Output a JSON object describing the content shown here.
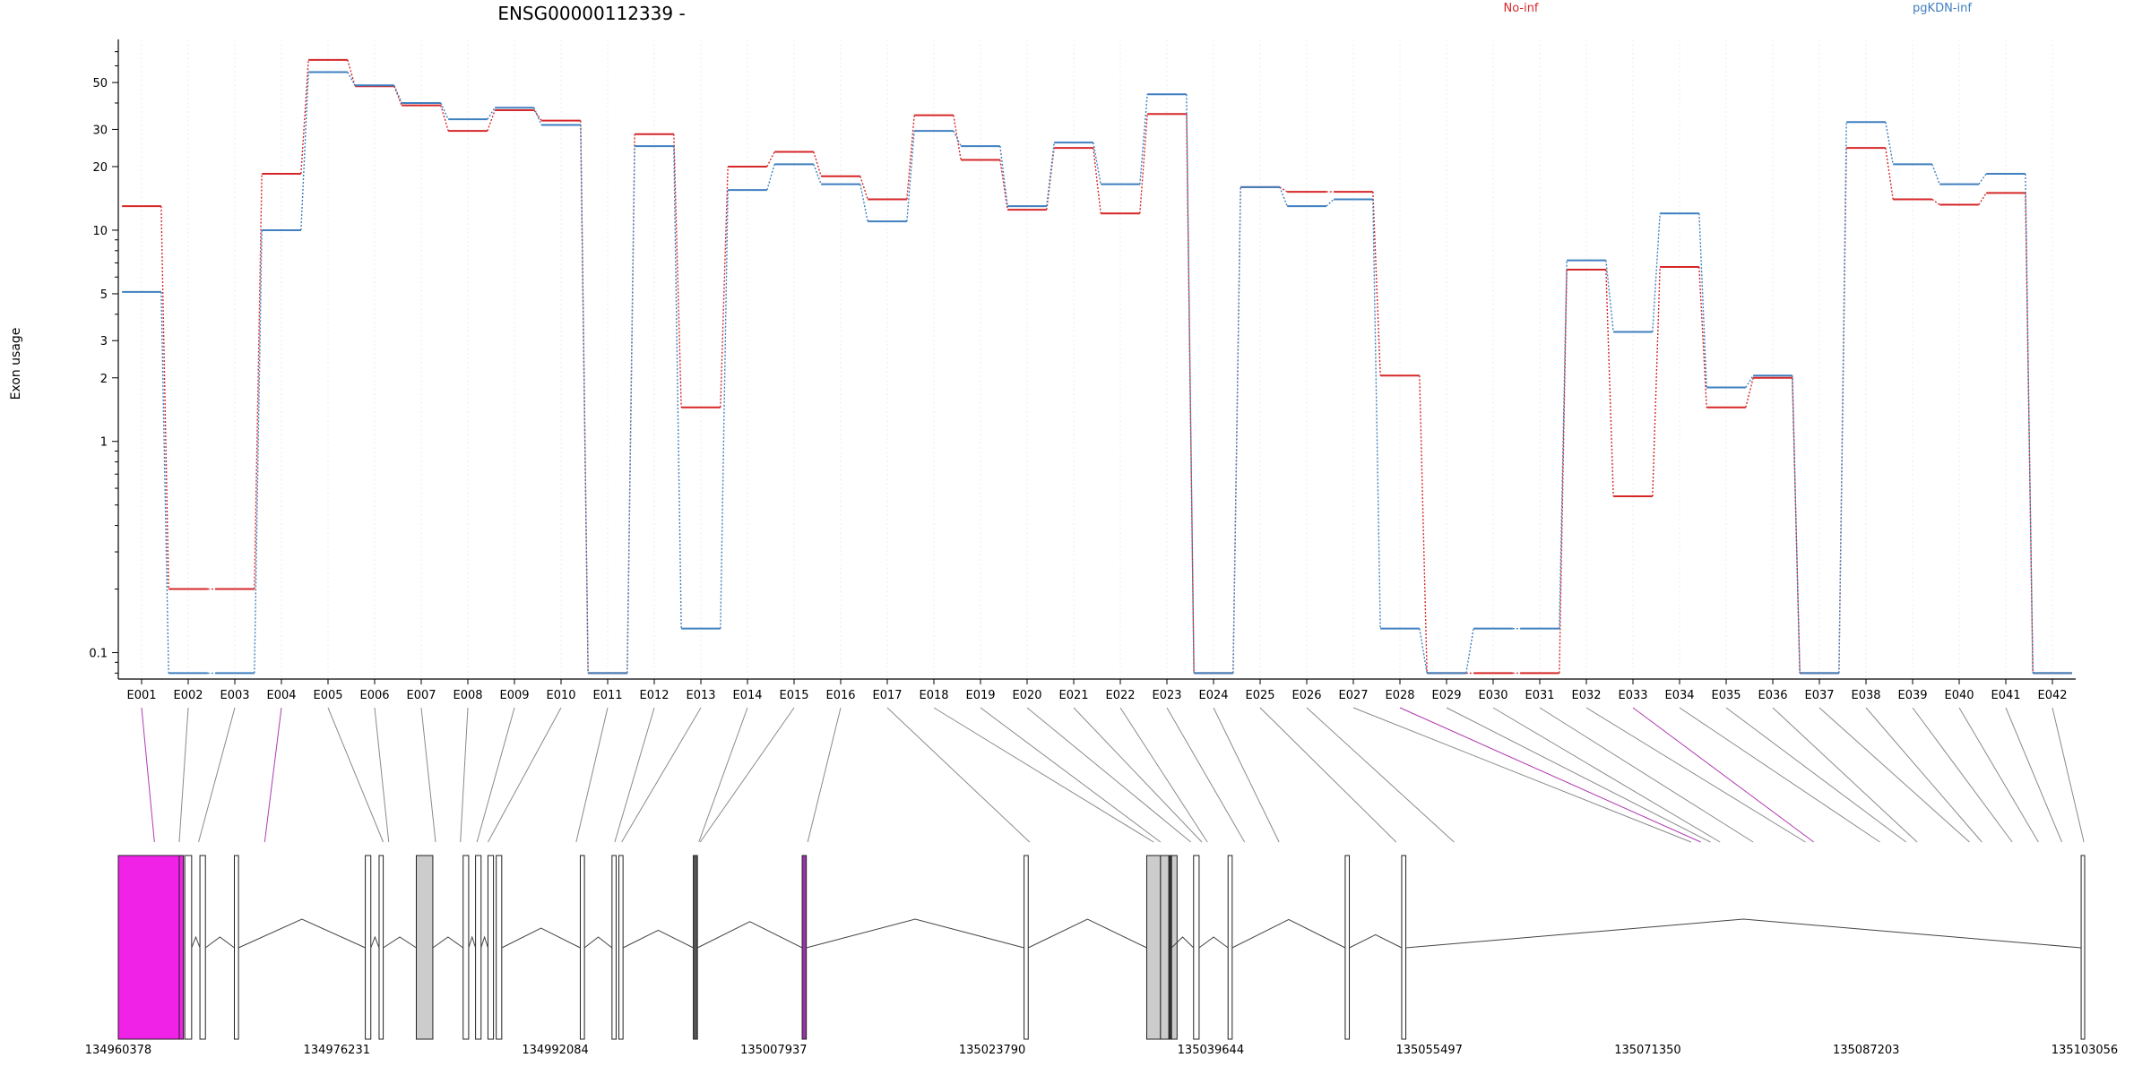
{
  "chart_data": {
    "type": "line",
    "title": "ENSG00000112339 -",
    "ylabel": "Exon usage",
    "xlabel": "",
    "yscale": "log",
    "ylim": [
      0.075,
      80
    ],
    "yticks": [
      0.1,
      1,
      2,
      3,
      5,
      10,
      20,
      30,
      50
    ],
    "ytick_labels": [
      "0.1",
      "1",
      "2",
      "3",
      "5",
      "10",
      "20",
      "30",
      "50"
    ],
    "grid": "vertical",
    "legend_placement": "top",
    "categories": [
      "E001",
      "E002",
      "E003",
      "E004",
      "E005",
      "E006",
      "E007",
      "E008",
      "E009",
      "E010",
      "E011",
      "E012",
      "E013",
      "E014",
      "E015",
      "E016",
      "E017",
      "E018",
      "E019",
      "E020",
      "E021",
      "E022",
      "E023",
      "E024",
      "E025",
      "E026",
      "E027",
      "E028",
      "E029",
      "E030",
      "E031",
      "E032",
      "E033",
      "E034",
      "E035",
      "E036",
      "E037",
      "E038",
      "E039",
      "E040",
      "E041",
      "E042"
    ],
    "series": [
      {
        "name": "No-inf",
        "color": "#d62728",
        "values": [
          13,
          0.2,
          0.2,
          18.5,
          64,
          48,
          39,
          29.5,
          37,
          33,
          0.08,
          28.5,
          1.45,
          20,
          23.5,
          18,
          14,
          35,
          21.5,
          12.5,
          24.5,
          12,
          35.5,
          0.08,
          16,
          15.2,
          15.2,
          2.05,
          0.08,
          0.08,
          0.08,
          6.5,
          0.55,
          6.7,
          1.45,
          2,
          0.08,
          24.5,
          14,
          13.2,
          15,
          0.08
        ]
      },
      {
        "name": "pgKDN-inf",
        "color": "#3f7fbf",
        "values": [
          5.1,
          0.08,
          0.08,
          10,
          56,
          48.5,
          40,
          33.5,
          38,
          31.5,
          0.08,
          25,
          0.13,
          15.5,
          20.5,
          16.5,
          11,
          29.5,
          25,
          13,
          26,
          16.5,
          44,
          0.08,
          16,
          13,
          14,
          0.13,
          0.08,
          0.13,
          0.13,
          7.2,
          3.3,
          12,
          1.8,
          2.05,
          0.08,
          32.5,
          20.5,
          16.5,
          18.5,
          0.08
        ]
      }
    ],
    "genomic_track": {
      "coord_ticks": [
        "134960378",
        "134976231",
        "134992084",
        "135007937",
        "135023790",
        "135039644",
        "135055497",
        "135071350",
        "135087203",
        "135103056"
      ],
      "coord_min": 134960378,
      "coord_max": 135103056,
      "exon_positions": [
        134963000,
        134964800,
        134966200,
        134971000,
        134979600,
        134980000,
        134983400,
        134985200,
        134986400,
        134987200,
        134993600,
        134996400,
        134996900,
        135002500,
        135002600,
        135010400,
        135026500,
        135035500,
        135036000,
        135038200,
        135039000,
        135039400,
        135042100,
        135044600,
        135053100,
        135057300,
        135074500,
        135075200,
        135075900,
        135076600,
        135079000,
        135082800,
        135083400,
        135088200,
        135090100,
        135090900,
        135094700,
        135095600,
        135097800,
        135099700,
        135101400,
        135103000
      ],
      "highlighted_exons": [
        "E001",
        "E004",
        "E028",
        "E033"
      ],
      "highlight_color": "#f022e8",
      "segments": [
        {
          "start": 134960378,
          "end": 134964800,
          "fill": "#f022e8"
        },
        {
          "start": 134964800,
          "end": 134965100,
          "fill": "#f022e8"
        },
        {
          "start": 134965200,
          "end": 134965700,
          "fill": "#ffffff"
        },
        {
          "start": 134966300,
          "end": 134966700,
          "fill": "#ffffff"
        },
        {
          "start": 134968800,
          "end": 134969100,
          "fill": "#ffffff"
        },
        {
          "start": 134978300,
          "end": 134978700,
          "fill": "#ffffff"
        },
        {
          "start": 134979300,
          "end": 134979600,
          "fill": "#ffffff"
        },
        {
          "start": 134982000,
          "end": 134983200,
          "fill": "#cccccc"
        },
        {
          "start": 134985400,
          "end": 134985800,
          "fill": "#ffffff"
        },
        {
          "start": 134986300,
          "end": 134986700,
          "fill": "#ffffff"
        },
        {
          "start": 134987200,
          "end": 134987600,
          "fill": "#ffffff"
        },
        {
          "start": 134987800,
          "end": 134988200,
          "fill": "#ffffff"
        },
        {
          "start": 134993900,
          "end": 134994200,
          "fill": "#ffffff"
        },
        {
          "start": 134996200,
          "end": 134996500,
          "fill": "#ffffff"
        },
        {
          "start": 134996700,
          "end": 134997000,
          "fill": "#ffffff"
        },
        {
          "start": 135002100,
          "end": 135002400,
          "fill": "#555555"
        },
        {
          "start": 135010000,
          "end": 135010300,
          "fill": "#9933aa"
        },
        {
          "start": 135026100,
          "end": 135026400,
          "fill": "#ffffff"
        },
        {
          "start": 135035000,
          "end": 135036000,
          "fill": "#cccccc"
        },
        {
          "start": 135036000,
          "end": 135037200,
          "fill": "#cccccc"
        },
        {
          "start": 135036600,
          "end": 135036800,
          "fill": "#333333"
        },
        {
          "start": 135038400,
          "end": 135038800,
          "fill": "#ffffff"
        },
        {
          "start": 135040900,
          "end": 135041200,
          "fill": "#ffffff"
        },
        {
          "start": 135049400,
          "end": 135049700,
          "fill": "#ffffff"
        },
        {
          "start": 135053500,
          "end": 135053800,
          "fill": "#ffffff"
        },
        {
          "start": 135102800,
          "end": 135103056,
          "fill": "#ffffff"
        }
      ]
    }
  }
}
